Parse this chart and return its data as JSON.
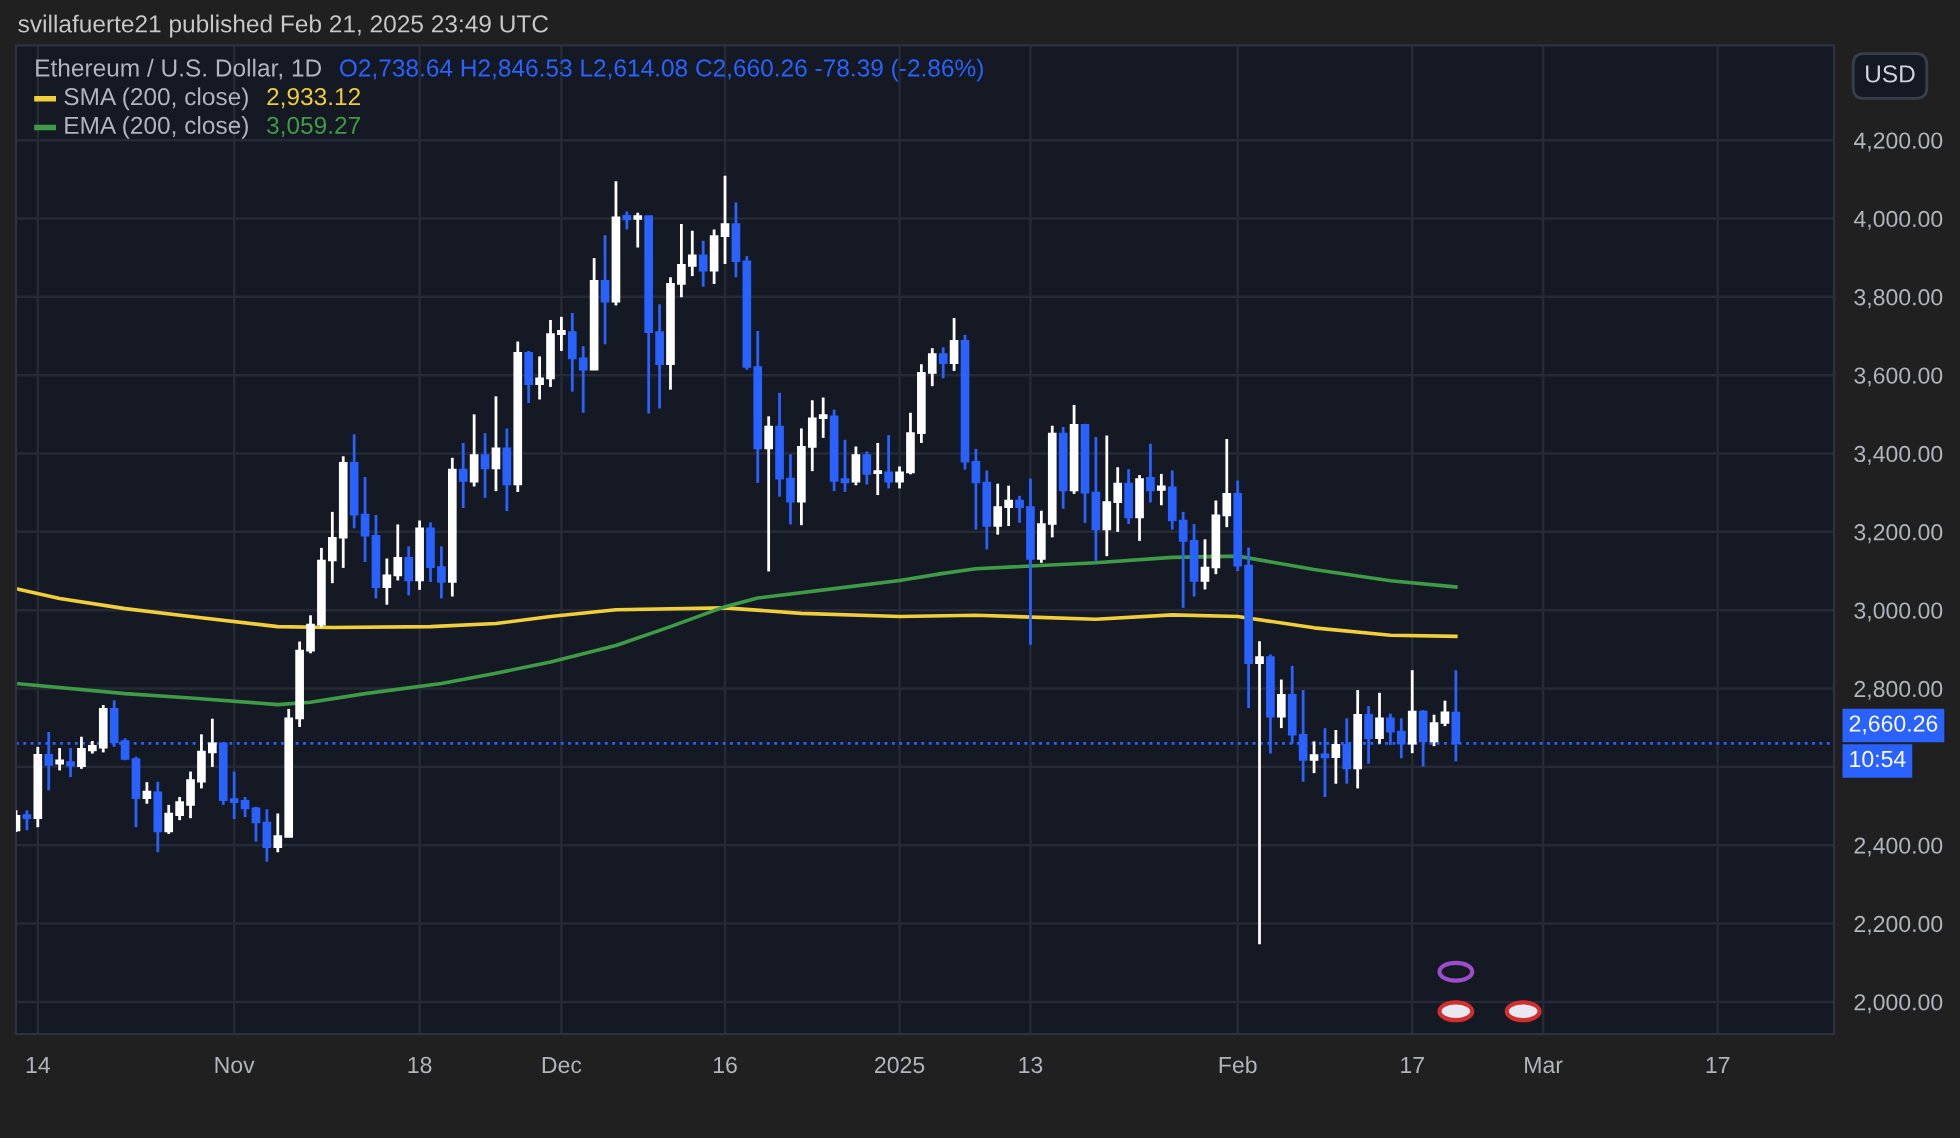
{
  "chart_data": {
    "type": "candlestick",
    "title": "Ethereum / U.S. Dollar, 1D",
    "annotations": [
      "svillafuerte21 published Feb 21, 2025 23:49 UTC",
      "O2,738.64 H2,846.53 L2,614.08 C2,660.26 -78.39 (-2.86%)",
      "2,933.12",
      "3,059.27",
      "USD",
      "10:54"
    ],
    "xlim": [
      "2024-10-12",
      "2025-03-27T16:00"
    ],
    "ylim": [
      1918,
      4442
    ],
    "xticks": [
      {
        "value": "2024-10-14",
        "label": "14"
      },
      {
        "value": "2024-11-01",
        "label": "Nov"
      },
      {
        "value": "2024-11-18",
        "label": "18"
      },
      {
        "value": "2024-12-01",
        "label": "Dec"
      },
      {
        "value": "2024-12-16",
        "label": "16"
      },
      {
        "value": "2025-01-01",
        "label": "2025"
      },
      {
        "value": "2025-01-13",
        "label": "13"
      },
      {
        "value": "2025-02-01",
        "label": "Feb"
      },
      {
        "value": "2025-02-17",
        "label": "17"
      },
      {
        "value": "2025-03-01",
        "label": "Mar"
      },
      {
        "value": "2025-03-17",
        "label": "17"
      }
    ],
    "yticks": [
      {
        "value": 2000,
        "label": "2,000.00"
      },
      {
        "value": 2200,
        "label": "2,200.00"
      },
      {
        "value": 2400,
        "label": "2,400.00"
      },
      {
        "value": 2600,
        "label": null
      },
      {
        "value": 2800,
        "label": "2,800.00"
      },
      {
        "value": 3000,
        "label": "3,000.00"
      },
      {
        "value": 3200,
        "label": "3,200.00"
      },
      {
        "value": 3400,
        "label": "3,400.00"
      },
      {
        "value": 3600,
        "label": "3,600.00"
      },
      {
        "value": 3800,
        "label": "3,800.00"
      },
      {
        "value": 4000,
        "label": "4,000.00"
      },
      {
        "value": 4200,
        "label": "4,200.00"
      }
    ],
    "grid": true,
    "legend": "top left",
    "ref_lines": [
      {
        "axis": "y",
        "value": 2660.26,
        "label": "2,660.26",
        "color": "#2962ff",
        "line_style": "dotted"
      }
    ],
    "series": [
      {
        "type": "candlestick",
        "x": [
          "2024-10-12",
          "2024-10-13",
          "2024-10-14",
          "2024-10-15",
          "2024-10-16",
          "2024-10-17",
          "2024-10-18",
          "2024-10-19",
          "2024-10-20",
          "2024-10-21",
          "2024-10-22",
          "2024-10-23",
          "2024-10-24",
          "2024-10-25",
          "2024-10-26",
          "2024-10-27",
          "2024-10-28",
          "2024-10-29",
          "2024-10-30",
          "2024-10-31",
          "2024-11-01",
          "2024-11-02",
          "2024-11-03",
          "2024-11-04",
          "2024-11-05",
          "2024-11-06",
          "2024-11-07",
          "2024-11-08",
          "2024-11-09",
          "2024-11-10",
          "2024-11-11",
          "2024-11-12",
          "2024-11-13",
          "2024-11-14",
          "2024-11-15",
          "2024-11-16",
          "2024-11-17",
          "2024-11-18",
          "2024-11-19",
          "2024-11-20",
          "2024-11-21",
          "2024-11-22",
          "2024-11-23",
          "2024-11-24",
          "2024-11-25",
          "2024-11-26",
          "2024-11-27",
          "2024-11-28",
          "2024-11-29",
          "2024-11-30",
          "2024-12-01",
          "2024-12-02",
          "2024-12-03",
          "2024-12-04",
          "2024-12-05",
          "2024-12-06",
          "2024-12-07",
          "2024-12-08",
          "2024-12-09",
          "2024-12-10",
          "2024-12-11",
          "2024-12-12",
          "2024-12-13",
          "2024-12-14",
          "2024-12-15",
          "2024-12-16",
          "2024-12-17",
          "2024-12-18",
          "2024-12-19",
          "2024-12-20",
          "2024-12-21",
          "2024-12-22",
          "2024-12-23",
          "2024-12-24",
          "2024-12-25",
          "2024-12-26",
          "2024-12-27",
          "2024-12-28",
          "2024-12-29",
          "2024-12-30",
          "2024-12-31",
          "2025-01-01",
          "2025-01-02",
          "2025-01-03",
          "2025-01-04",
          "2025-01-05",
          "2025-01-06",
          "2025-01-07",
          "2025-01-08",
          "2025-01-09",
          "2025-01-10",
          "2025-01-11",
          "2025-01-12",
          "2025-01-13",
          "2025-01-14",
          "2025-01-15",
          "2025-01-16",
          "2025-01-17",
          "2025-01-18",
          "2025-01-19",
          "2025-01-20",
          "2025-01-21",
          "2025-01-22",
          "2025-01-23",
          "2025-01-24",
          "2025-01-25",
          "2025-01-26",
          "2025-01-27",
          "2025-01-28",
          "2025-01-29",
          "2025-01-30",
          "2025-01-31",
          "2025-02-01",
          "2025-02-02",
          "2025-02-03",
          "2025-02-04",
          "2025-02-05",
          "2025-02-06",
          "2025-02-07",
          "2025-02-08",
          "2025-02-09",
          "2025-02-10",
          "2025-02-11",
          "2025-02-12",
          "2025-02-13",
          "2025-02-14",
          "2025-02-15",
          "2025-02-16",
          "2025-02-17",
          "2025-02-18",
          "2025-02-19",
          "2025-02-20",
          "2025-02-21"
        ],
        "ohlc": [
          [
            2438,
            2489,
            2434,
            2475
          ],
          [
            2477,
            2489,
            2438,
            2469
          ],
          [
            2469,
            2651,
            2446,
            2631
          ],
          [
            2631,
            2689,
            2540,
            2605
          ],
          [
            2608,
            2648,
            2591,
            2617
          ],
          [
            2612,
            2648,
            2574,
            2603
          ],
          [
            2602,
            2677,
            2595,
            2646
          ],
          [
            2642,
            2666,
            2634,
            2654
          ],
          [
            2649,
            2758,
            2637,
            2748
          ],
          [
            2748,
            2770,
            2651,
            2663
          ],
          [
            2666,
            2673,
            2617,
            2620
          ],
          [
            2620,
            2626,
            2446,
            2520
          ],
          [
            2520,
            2561,
            2506,
            2537
          ],
          [
            2535,
            2562,
            2382,
            2435
          ],
          [
            2435,
            2503,
            2429,
            2481
          ],
          [
            2477,
            2523,
            2464,
            2510
          ],
          [
            2503,
            2588,
            2469,
            2566
          ],
          [
            2562,
            2683,
            2545,
            2639
          ],
          [
            2637,
            2723,
            2600,
            2660
          ],
          [
            2660,
            2663,
            2503,
            2515
          ],
          [
            2518,
            2588,
            2467,
            2510
          ],
          [
            2513,
            2523,
            2472,
            2494
          ],
          [
            2494,
            2498,
            2409,
            2458
          ],
          [
            2458,
            2492,
            2358,
            2395
          ],
          [
            2395,
            2481,
            2382,
            2423
          ],
          [
            2421,
            2748,
            2421,
            2724
          ],
          [
            2724,
            2920,
            2702,
            2897
          ],
          [
            2897,
            2987,
            2890,
            2963
          ],
          [
            2963,
            3159,
            2956,
            3127
          ],
          [
            3127,
            3251,
            3069,
            3185
          ],
          [
            3185,
            3393,
            3108,
            3376
          ],
          [
            3376,
            3449,
            3209,
            3244
          ],
          [
            3244,
            3340,
            3123,
            3190
          ],
          [
            3190,
            3243,
            3030,
            3059
          ],
          [
            3059,
            3132,
            3014,
            3089
          ],
          [
            3089,
            3219,
            3076,
            3134
          ],
          [
            3134,
            3163,
            3038,
            3076
          ],
          [
            3076,
            3229,
            3052,
            3209
          ],
          [
            3209,
            3224,
            3072,
            3110
          ],
          [
            3110,
            3163,
            3030,
            3072
          ],
          [
            3072,
            3389,
            3035,
            3359
          ],
          [
            3359,
            3427,
            3261,
            3330
          ],
          [
            3328,
            3500,
            3316,
            3396
          ],
          [
            3396,
            3452,
            3287,
            3362
          ],
          [
            3362,
            3546,
            3304,
            3413
          ],
          [
            3413,
            3464,
            3253,
            3321
          ],
          [
            3321,
            3686,
            3302,
            3657
          ],
          [
            3657,
            3662,
            3529,
            3577
          ],
          [
            3577,
            3648,
            3538,
            3592
          ],
          [
            3592,
            3741,
            3570,
            3705
          ],
          [
            3705,
            3749,
            3662,
            3713
          ],
          [
            3710,
            3759,
            3558,
            3643
          ],
          [
            3643,
            3674,
            3504,
            3614
          ],
          [
            3614,
            3899,
            3614,
            3841
          ],
          [
            3841,
            3957,
            3679,
            3788
          ],
          [
            3788,
            4095,
            3778,
            4003
          ],
          [
            4007,
            4018,
            3972,
            3998
          ],
          [
            3999,
            4015,
            3926,
            4006
          ],
          [
            4006,
            4006,
            3502,
            3710
          ],
          [
            3710,
            3781,
            3515,
            3628
          ],
          [
            3628,
            3850,
            3563,
            3833
          ],
          [
            3833,
            3986,
            3799,
            3882
          ],
          [
            3879,
            3969,
            3853,
            3906
          ],
          [
            3906,
            3943,
            3826,
            3867
          ],
          [
            3867,
            3972,
            3833,
            3955
          ],
          [
            3955,
            4109,
            3884,
            3986
          ],
          [
            3986,
            4041,
            3850,
            3891
          ],
          [
            3891,
            3904,
            3614,
            3621
          ],
          [
            3621,
            3713,
            3325,
            3413
          ],
          [
            3413,
            3495,
            3099,
            3469
          ],
          [
            3469,
            3555,
            3290,
            3336
          ],
          [
            3336,
            3398,
            3219,
            3277
          ],
          [
            3277,
            3464,
            3217,
            3417
          ],
          [
            3417,
            3536,
            3355,
            3490
          ],
          [
            3490,
            3543,
            3440,
            3498
          ],
          [
            3495,
            3512,
            3304,
            3330
          ],
          [
            3335,
            3435,
            3302,
            3326
          ],
          [
            3328,
            3418,
            3319,
            3396
          ],
          [
            3396,
            3405,
            3321,
            3348
          ],
          [
            3350,
            3427,
            3294,
            3355
          ],
          [
            3352,
            3447,
            3311,
            3328
          ],
          [
            3328,
            3367,
            3311,
            3352
          ],
          [
            3352,
            3504,
            3347,
            3452
          ],
          [
            3452,
            3628,
            3427,
            3606
          ],
          [
            3606,
            3669,
            3572,
            3654
          ],
          [
            3654,
            3671,
            3592,
            3631
          ],
          [
            3631,
            3746,
            3611,
            3688
          ],
          [
            3688,
            3703,
            3359,
            3379
          ],
          [
            3379,
            3412,
            3206,
            3326
          ],
          [
            3326,
            3357,
            3155,
            3215
          ],
          [
            3215,
            3323,
            3193,
            3263
          ],
          [
            3263,
            3318,
            3215,
            3280
          ],
          [
            3280,
            3292,
            3223,
            3263
          ],
          [
            3263,
            3336,
            2912,
            3131
          ],
          [
            3131,
            3254,
            3121,
            3220
          ],
          [
            3220,
            3471,
            3186,
            3451
          ],
          [
            3451,
            3468,
            3259,
            3306
          ],
          [
            3306,
            3524,
            3297,
            3473
          ],
          [
            3473,
            3476,
            3223,
            3300
          ],
          [
            3300,
            3442,
            3126,
            3206
          ],
          [
            3206,
            3446,
            3138,
            3276
          ],
          [
            3276,
            3365,
            3200,
            3323
          ],
          [
            3323,
            3360,
            3220,
            3237
          ],
          [
            3237,
            3345,
            3177,
            3335
          ],
          [
            3338,
            3425,
            3275,
            3306
          ],
          [
            3307,
            3348,
            3268,
            3316
          ],
          [
            3314,
            3357,
            3206,
            3229
          ],
          [
            3229,
            3251,
            3006,
            3177
          ],
          [
            3177,
            3220,
            3035,
            3075
          ],
          [
            3075,
            3181,
            3053,
            3109
          ],
          [
            3109,
            3280,
            3092,
            3242
          ],
          [
            3242,
            3437,
            3212,
            3297
          ],
          [
            3297,
            3331,
            3100,
            3114
          ],
          [
            3114,
            3160,
            2750,
            2865
          ],
          [
            2865,
            2921,
            2147,
            2880
          ],
          [
            2880,
            2887,
            2634,
            2728
          ],
          [
            2728,
            2823,
            2699,
            2784
          ],
          [
            2784,
            2858,
            2659,
            2682
          ],
          [
            2682,
            2796,
            2562,
            2618
          ],
          [
            2618,
            2665,
            2584,
            2630
          ],
          [
            2632,
            2699,
            2523,
            2624
          ],
          [
            2625,
            2694,
            2557,
            2656
          ],
          [
            2656,
            2724,
            2557,
            2596
          ],
          [
            2596,
            2796,
            2545,
            2733
          ],
          [
            2733,
            2755,
            2608,
            2673
          ],
          [
            2673,
            2789,
            2659,
            2724
          ],
          [
            2724,
            2736,
            2656,
            2690
          ],
          [
            2690,
            2724,
            2622,
            2659
          ],
          [
            2659,
            2847,
            2635,
            2741
          ],
          [
            2741,
            2745,
            2601,
            2665
          ],
          [
            2665,
            2733,
            2653,
            2712
          ],
          [
            2712,
            2769,
            2704,
            2739
          ],
          [
            2738.64,
            2846.53,
            2614.08,
            2660.26
          ]
        ],
        "colors": [
          "#ffffff",
          "#2962ff",
          "#ffffff",
          "#2962ff",
          "#ffffff",
          "#2962ff",
          "#ffffff",
          "#ffffff",
          "#ffffff",
          "#2962ff",
          "#2962ff",
          "#2962ff",
          "#ffffff",
          "#2962ff",
          "#ffffff",
          "#ffffff",
          "#ffffff",
          "#ffffff",
          "#ffffff",
          "#2962ff",
          "#2962ff",
          "#2962ff",
          "#2962ff",
          "#2962ff",
          "#ffffff",
          "#ffffff",
          "#ffffff",
          "#ffffff",
          "#ffffff",
          "#ffffff",
          "#ffffff",
          "#2962ff",
          "#2962ff",
          "#2962ff",
          "#ffffff",
          "#ffffff",
          "#2962ff",
          "#ffffff",
          "#2962ff",
          "#2962ff",
          "#ffffff",
          "#2962ff",
          "#ffffff",
          "#2962ff",
          "#ffffff",
          "#2962ff",
          "#ffffff",
          "#2962ff",
          "#ffffff",
          "#ffffff",
          "#ffffff",
          "#2962ff",
          "#2962ff",
          "#ffffff",
          "#2962ff",
          "#ffffff",
          "#2962ff",
          "#ffffff",
          "#2962ff",
          "#2962ff",
          "#ffffff",
          "#ffffff",
          "#ffffff",
          "#2962ff",
          "#ffffff",
          "#ffffff",
          "#2962ff",
          "#2962ff",
          "#2962ff",
          "#ffffff",
          "#2962ff",
          "#2962ff",
          "#ffffff",
          "#ffffff",
          "#ffffff",
          "#2962ff",
          "#2962ff",
          "#ffffff",
          "#2962ff",
          "#ffffff",
          "#2962ff",
          "#ffffff",
          "#ffffff",
          "#ffffff",
          "#ffffff",
          "#2962ff",
          "#ffffff",
          "#2962ff",
          "#2962ff",
          "#2962ff",
          "#ffffff",
          "#ffffff",
          "#2962ff",
          "#2962ff",
          "#ffffff",
          "#ffffff",
          "#2962ff",
          "#ffffff",
          "#2962ff",
          "#2962ff",
          "#ffffff",
          "#ffffff",
          "#2962ff",
          "#ffffff",
          "#2962ff",
          "#ffffff",
          "#2962ff",
          "#2962ff",
          "#2962ff",
          "#ffffff",
          "#ffffff",
          "#ffffff",
          "#2962ff",
          "#2962ff",
          "#ffffff",
          "#2962ff",
          "#ffffff",
          "#2962ff",
          "#2962ff",
          "#ffffff",
          "#2962ff",
          "#ffffff",
          "#2962ff",
          "#ffffff",
          "#2962ff",
          "#ffffff",
          "#2962ff",
          "#2962ff",
          "#ffffff",
          "#2962ff",
          "#ffffff",
          "#ffffff",
          "#2962ff"
        ]
      },
      {
        "type": "line",
        "name": "SMA (200, close)",
        "color": "#f0cf3a",
        "x": [
          "2024-10-12",
          "2024-10-16",
          "2024-10-22",
          "2024-10-28",
          "2024-11-05",
          "2024-11-10",
          "2024-11-19",
          "2024-11-25",
          "2024-11-30",
          "2024-12-06",
          "2024-12-16",
          "2024-12-23",
          "2025-01-01",
          "2025-01-08",
          "2025-01-19",
          "2025-01-26",
          "2025-02-01",
          "2025-02-08",
          "2025-02-15",
          "2025-02-21"
        ],
        "values": [
          3055,
          3030,
          3004,
          2984,
          2958,
          2956,
          2958,
          2966,
          2984,
          3001,
          3006,
          2992,
          2984,
          2987,
          2977,
          2988,
          2984,
          2955,
          2936,
          2933.12
        ]
      },
      {
        "type": "line",
        "name": "EMA (200, close)",
        "color": "#3e9c46",
        "x": [
          "2024-10-12",
          "2024-10-22",
          "2024-10-28",
          "2024-11-05",
          "2024-11-08",
          "2024-11-13",
          "2024-11-20",
          "2024-11-25",
          "2024-11-30",
          "2024-12-06",
          "2024-12-11",
          "2024-12-16",
          "2024-12-19",
          "2024-12-26",
          "2025-01-01",
          "2025-01-05",
          "2025-01-08",
          "2025-01-19",
          "2025-01-26",
          "2025-02-01",
          "2025-02-08",
          "2025-02-15",
          "2025-02-21"
        ],
        "values": [
          2813,
          2787,
          2776,
          2759,
          2765,
          2787,
          2813,
          2839,
          2868,
          2910,
          2958,
          3009,
          3031,
          3055,
          3076,
          3094,
          3106,
          3121,
          3135,
          3138,
          3104,
          3075,
          3059.27
        ]
      }
    ]
  }
}
